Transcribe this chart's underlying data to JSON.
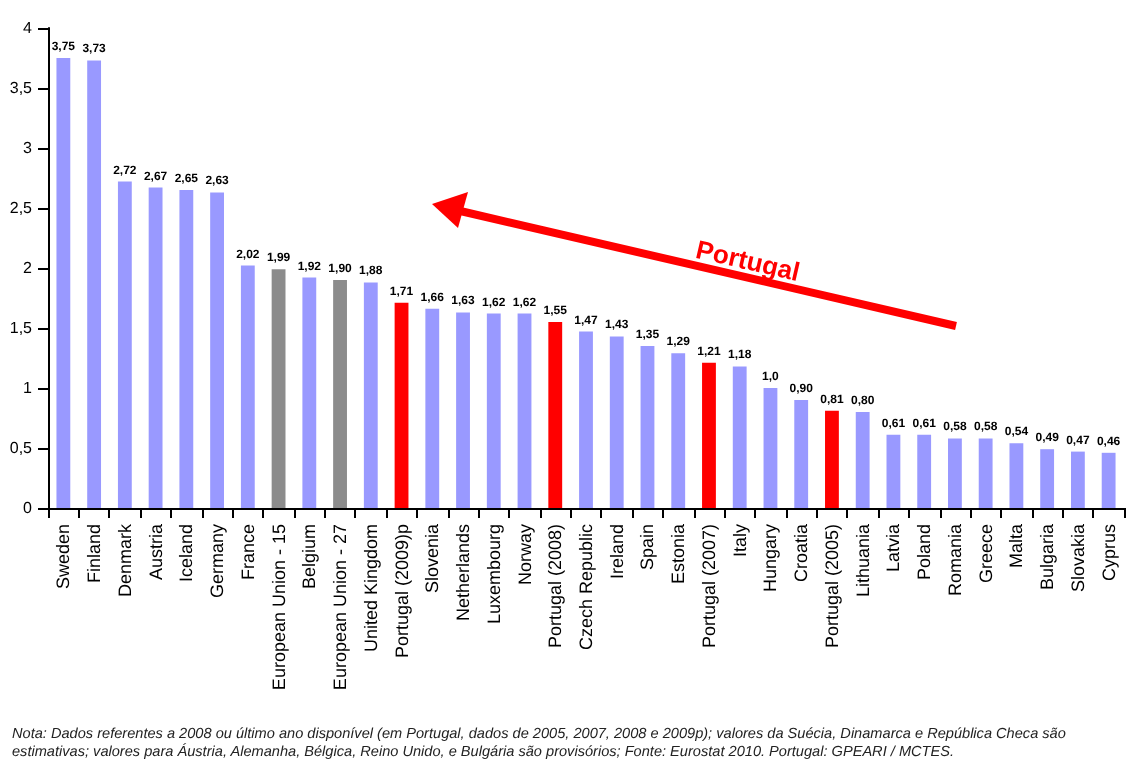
{
  "chart_data": {
    "type": "bar",
    "categories": [
      "Sweden",
      "Finland",
      "Denmark",
      "Austria",
      "Iceland",
      "Germany",
      "France",
      "European Union - 15",
      "Belgium",
      "European Union - 27",
      "United Kingdom",
      "Portugal (2009)p",
      "Slovenia",
      "Netherlands",
      "Luxembourg",
      "Norway",
      "Portugal (2008)",
      "Czech Republic",
      "Ireland",
      "Spain",
      "Estonia",
      "Portugal (2007)",
      "Italy",
      "Hungary",
      "Croatia",
      "Portugal (2005)",
      "Lithuania",
      "Latvia",
      "Poland",
      "Romania",
      "Greece",
      "Malta",
      "Bulgaria",
      "Slovakia",
      "Cyprus"
    ],
    "values": [
      3.75,
      3.73,
      2.72,
      2.67,
      2.65,
      2.63,
      2.02,
      1.99,
      1.92,
      1.9,
      1.88,
      1.71,
      1.66,
      1.63,
      1.62,
      1.62,
      1.55,
      1.47,
      1.43,
      1.35,
      1.29,
      1.21,
      1.18,
      1.0,
      0.9,
      0.81,
      0.8,
      0.61,
      0.61,
      0.58,
      0.58,
      0.54,
      0.49,
      0.47,
      0.46
    ],
    "value_labels": [
      "3,75",
      "3,73",
      "2,72",
      "2,67",
      "2,65",
      "2,63",
      "2,02",
      "1,99",
      "1,92",
      "1,90",
      "1,88",
      "1,71",
      "1,66",
      "1,63",
      "1,62",
      "1,62",
      "1,55",
      "1,47",
      "1,43",
      "1,35",
      "1,29",
      "1,21",
      "1,18",
      "1,0",
      "0,90",
      "0,81",
      "0,80",
      "0,61",
      "0,61",
      "0,58",
      "0,58",
      "0,54",
      "0,49",
      "0,47",
      "0,46"
    ],
    "colors": [
      "#9999ff",
      "#9999ff",
      "#9999ff",
      "#9999ff",
      "#9999ff",
      "#9999ff",
      "#9999ff",
      "#8c8c8c",
      "#9999ff",
      "#8c8c8c",
      "#9999ff",
      "#ff0000",
      "#9999ff",
      "#9999ff",
      "#9999ff",
      "#9999ff",
      "#ff0000",
      "#9999ff",
      "#9999ff",
      "#9999ff",
      "#9999ff",
      "#ff0000",
      "#9999ff",
      "#9999ff",
      "#9999ff",
      "#ff0000",
      "#9999ff",
      "#9999ff",
      "#9999ff",
      "#9999ff",
      "#9999ff",
      "#9999ff",
      "#9999ff",
      "#9999ff",
      "#9999ff"
    ],
    "ylim": [
      0,
      4
    ],
    "yticks": [
      0,
      {
        "value": 0.5,
        "label": "0,5"
      },
      1,
      {
        "value": 1.5,
        "label": "1,5"
      },
      2,
      {
        "value": 2.5,
        "label": "2,5"
      },
      3,
      {
        "value": 3.5,
        "label": "3,5"
      },
      4
    ],
    "grid": false,
    "annotations": [
      "Portugal",
      "Nota: Dados referentes a 2008 ou último ano disponível (em Portugal, dados de 2005, 2007, 2008 e 2009p); valores da Suécia, Dinamarca e República Checa são estimativas; valores para Áustria, Alemanha, Bélgica, Reino Unido, e Bulgária são provisórios;  Fonte: Eurostat 2010. Portugal: GPEARI / MCTES."
    ]
  }
}
